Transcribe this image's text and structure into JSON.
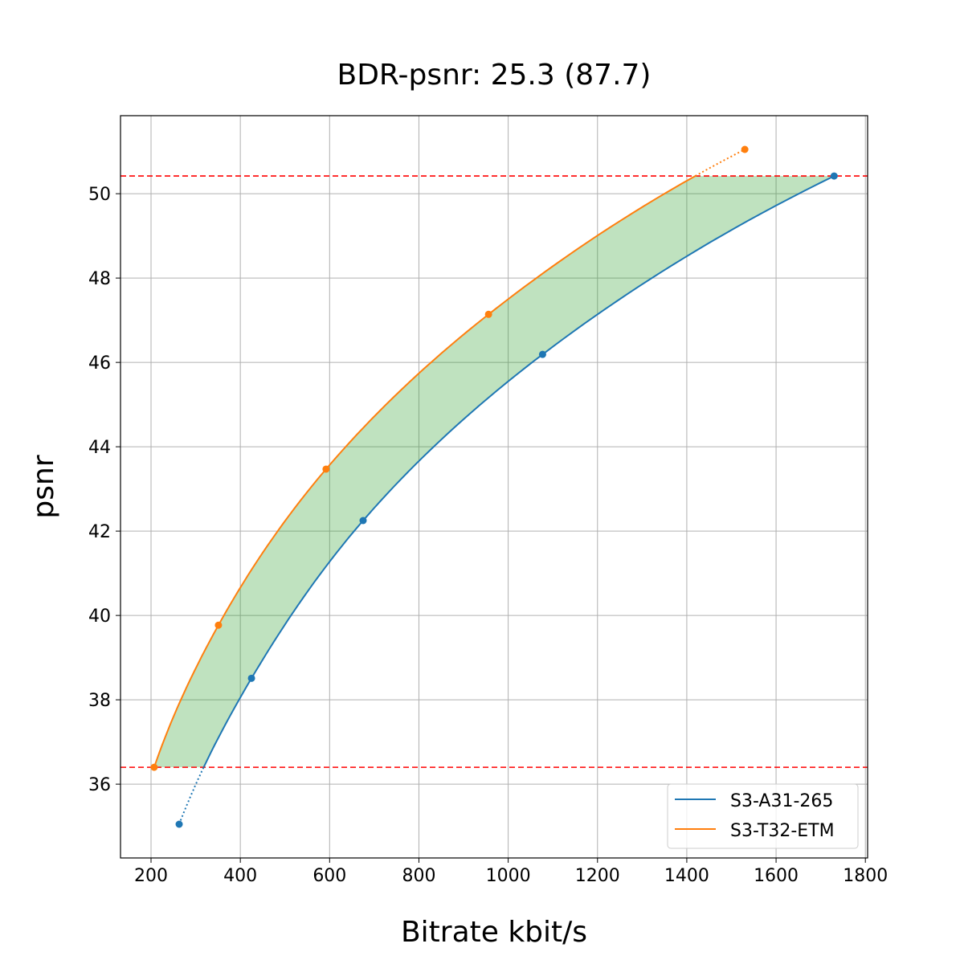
{
  "chart_data": {
    "type": "line",
    "title": "BDR-psnr: 25.3 (87.7)",
    "xlabel": "Bitrate kbit/s",
    "ylabel": "psnr",
    "xlim": [
      131.6,
      1805
    ],
    "ylim": [
      34.25,
      51.85
    ],
    "xticks": [
      200,
      400,
      600,
      800,
      1000,
      1200,
      1400,
      1600,
      1800
    ],
    "yticks": [
      36,
      38,
      40,
      42,
      44,
      46,
      48,
      50
    ],
    "grid": true,
    "legend_position": "lower-right",
    "overlap_bounds": {
      "psnr_low": 36.4,
      "psnr_high": 50.42,
      "line_color": "#ff0000"
    },
    "fill_color": "#2ca02c",
    "series": [
      {
        "name": "S3-A31-265",
        "color": "#1f77b4",
        "x": [
          263,
          425,
          675,
          1077,
          1730
        ],
        "y": [
          35.05,
          38.51,
          42.25,
          46.19,
          50.42
        ]
      },
      {
        "name": "S3-T32-ETM",
        "color": "#ff7f0e",
        "x": [
          207,
          351,
          592,
          956,
          1530
        ],
        "y": [
          36.4,
          39.77,
          43.47,
          47.14,
          51.05
        ]
      }
    ]
  }
}
